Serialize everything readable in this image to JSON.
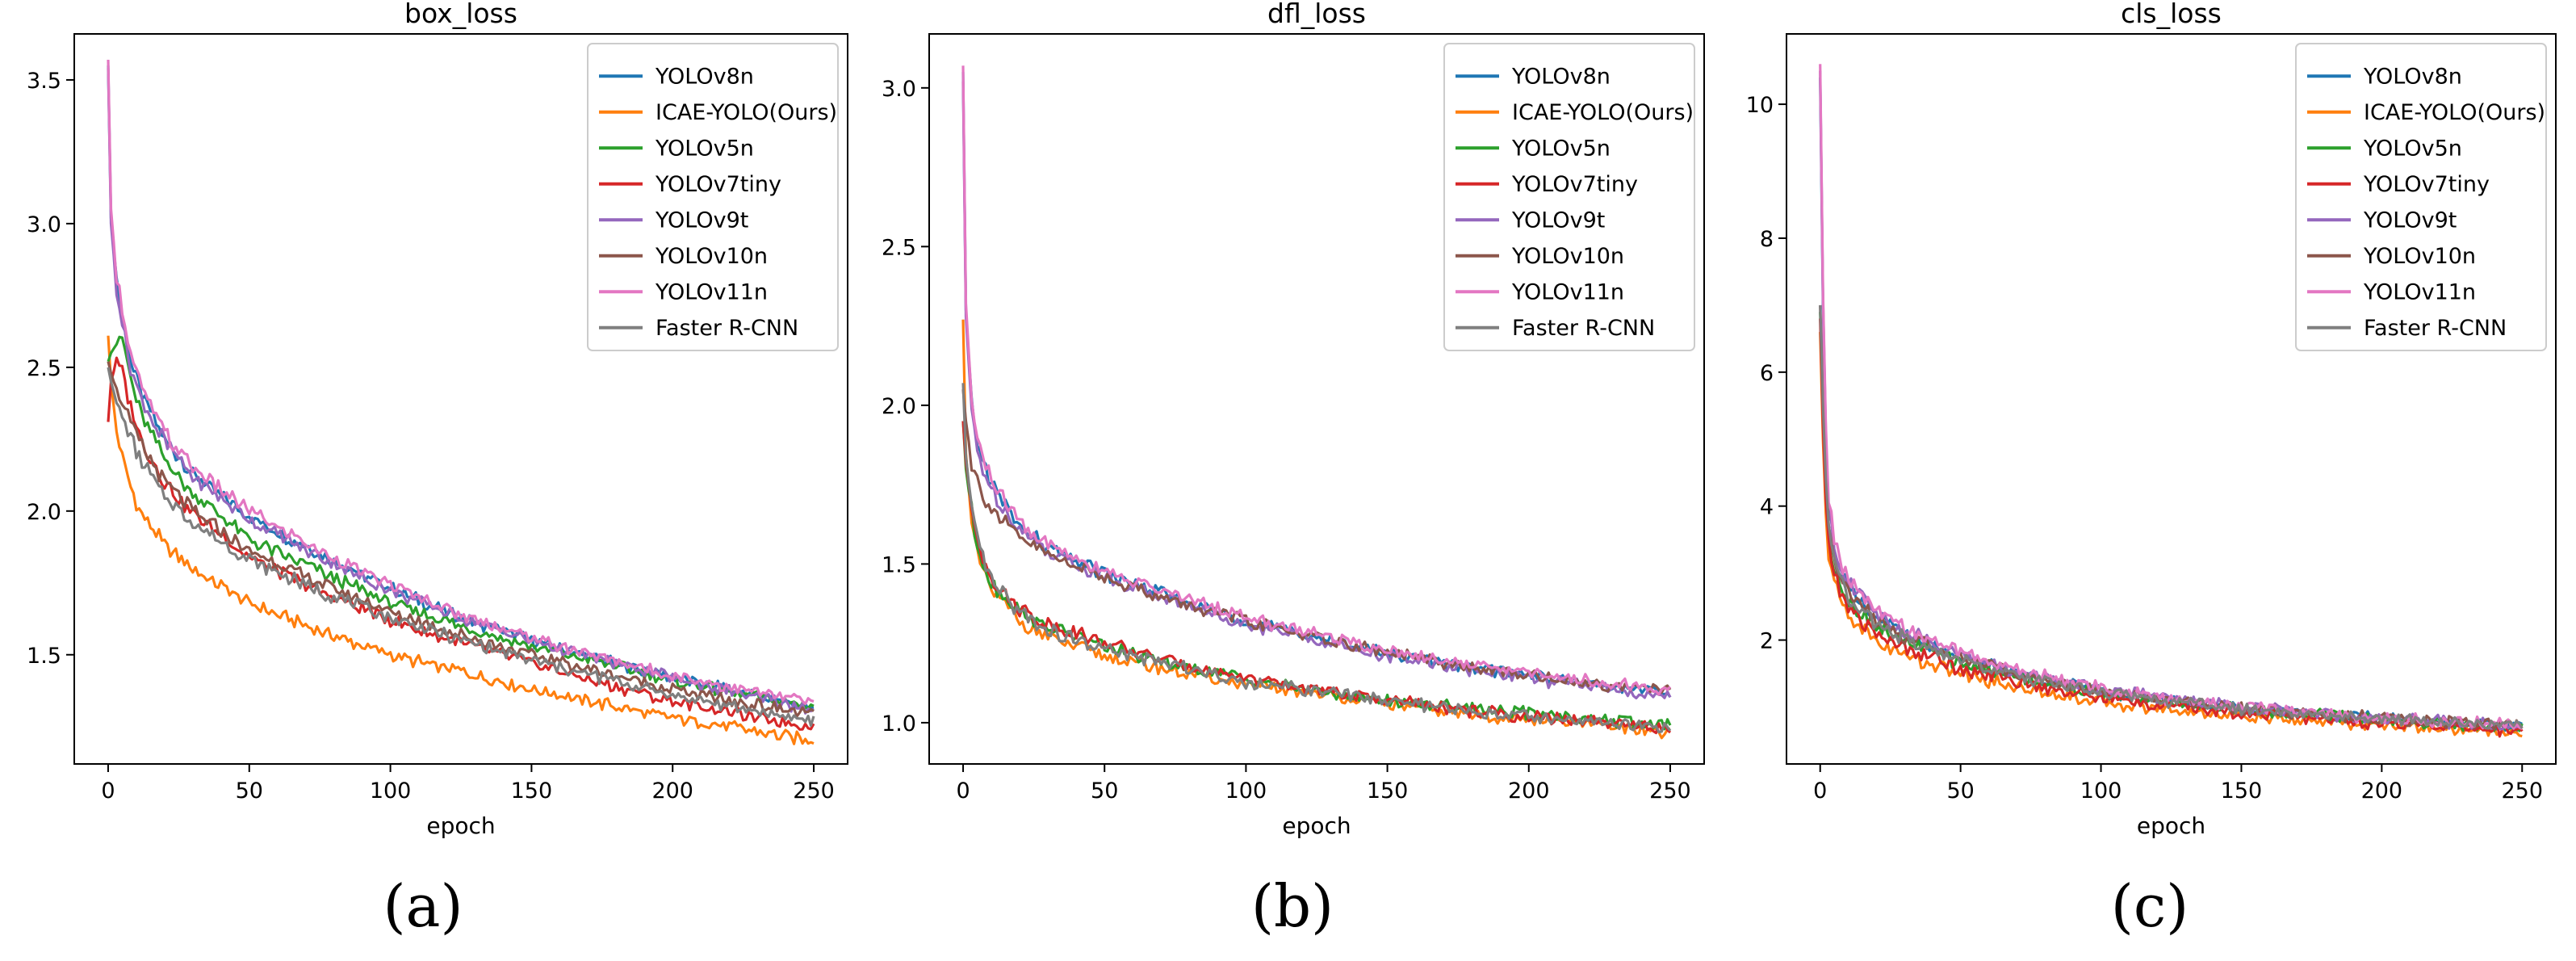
{
  "colors": {
    "YOLOv8n": "#1f77b4",
    "ICAE-YOLO(Ours)": "#ff7f0e",
    "YOLOv5n": "#2ca02c",
    "YOLOv7tiny": "#d62728",
    "YOLOv9t": "#9467bd",
    "YOLOv10n": "#8c564b",
    "YOLOv11n": "#e377c2",
    "Faster R-CNN": "#7f7f7f"
  },
  "chart_data": [
    {
      "type": "line",
      "panel_label": "(a)",
      "title": "box_loss",
      "xlabel": "epoch",
      "ylabel": "",
      "xlim": [
        -12,
        262
      ],
      "ylim": [
        1.12,
        3.66
      ],
      "xticks": [
        0,
        50,
        100,
        150,
        200,
        250
      ],
      "yticks": [
        1.5,
        2.0,
        2.5,
        3.0,
        3.5
      ],
      "ytick_labels": [
        "1.5",
        "2.0",
        "2.5",
        "3.0",
        "3.5"
      ],
      "legend_position": "top-right",
      "series": [
        {
          "name": "YOLOv8n",
          "x": [
            0,
            1,
            3,
            5,
            8,
            12,
            20,
            30,
            50,
            75,
            100,
            125,
            150,
            175,
            200,
            225,
            250
          ],
          "values": [
            3.55,
            3.02,
            2.8,
            2.68,
            2.52,
            2.4,
            2.25,
            2.13,
            1.98,
            1.85,
            1.73,
            1.63,
            1.55,
            1.48,
            1.42,
            1.37,
            1.31
          ]
        },
        {
          "name": "ICAE-YOLO(Ours)",
          "x": [
            0,
            1,
            3,
            5,
            8,
            12,
            20,
            30,
            50,
            75,
            100,
            125,
            150,
            175,
            200,
            225,
            250
          ],
          "values": [
            2.61,
            2.45,
            2.28,
            2.18,
            2.08,
            1.98,
            1.88,
            1.8,
            1.68,
            1.58,
            1.5,
            1.44,
            1.38,
            1.33,
            1.28,
            1.24,
            1.2
          ]
        },
        {
          "name": "YOLOv5n",
          "x": [
            0,
            1,
            3,
            5,
            8,
            12,
            20,
            30,
            50,
            75,
            100,
            125,
            150,
            175,
            200,
            225,
            250
          ],
          "values": [
            2.52,
            2.55,
            2.58,
            2.6,
            2.46,
            2.33,
            2.18,
            2.06,
            1.9,
            1.79,
            1.68,
            1.6,
            1.53,
            1.47,
            1.41,
            1.36,
            1.32
          ]
        },
        {
          "name": "YOLOv7tiny",
          "x": [
            0,
            1,
            3,
            5,
            8,
            12,
            20,
            30,
            50,
            75,
            100,
            125,
            150,
            175,
            200,
            225,
            250
          ],
          "values": [
            2.31,
            2.45,
            2.52,
            2.48,
            2.36,
            2.24,
            2.1,
            1.99,
            1.84,
            1.72,
            1.62,
            1.54,
            1.47,
            1.4,
            1.34,
            1.29,
            1.25
          ]
        },
        {
          "name": "YOLOv9t",
          "x": [
            0,
            1,
            3,
            5,
            8,
            12,
            20,
            30,
            50,
            75,
            100,
            125,
            150,
            175,
            200,
            225,
            250
          ],
          "values": [
            3.54,
            3.0,
            2.78,
            2.66,
            2.5,
            2.38,
            2.24,
            2.12,
            1.97,
            1.84,
            1.72,
            1.63,
            1.55,
            1.48,
            1.42,
            1.36,
            1.31
          ]
        },
        {
          "name": "YOLOv10n",
          "x": [
            0,
            1,
            3,
            5,
            8,
            12,
            20,
            30,
            50,
            75,
            100,
            125,
            150,
            175,
            200,
            225,
            250
          ],
          "values": [
            2.52,
            2.48,
            2.42,
            2.38,
            2.3,
            2.22,
            2.1,
            2.0,
            1.86,
            1.75,
            1.65,
            1.57,
            1.5,
            1.44,
            1.38,
            1.33,
            1.29
          ]
        },
        {
          "name": "YOLOv11n",
          "x": [
            0,
            1,
            3,
            5,
            8,
            12,
            20,
            30,
            50,
            75,
            100,
            125,
            150,
            175,
            200,
            225,
            250
          ],
          "values": [
            3.57,
            3.05,
            2.82,
            2.7,
            2.55,
            2.42,
            2.27,
            2.15,
            2.0,
            1.86,
            1.74,
            1.64,
            1.56,
            1.49,
            1.43,
            1.38,
            1.33
          ]
        },
        {
          "name": "Faster R-CNN",
          "x": [
            0,
            1,
            3,
            5,
            8,
            12,
            20,
            30,
            50,
            75,
            100,
            125,
            150,
            175,
            200,
            225,
            250
          ],
          "values": [
            2.5,
            2.45,
            2.38,
            2.33,
            2.25,
            2.17,
            2.05,
            1.96,
            1.83,
            1.72,
            1.63,
            1.55,
            1.48,
            1.42,
            1.36,
            1.31,
            1.27
          ]
        }
      ]
    },
    {
      "type": "line",
      "panel_label": "(b)",
      "title": "dfl_loss",
      "xlabel": "epoch",
      "ylabel": "",
      "xlim": [
        -12,
        262
      ],
      "ylim": [
        0.87,
        3.17
      ],
      "xticks": [
        0,
        50,
        100,
        150,
        200,
        250
      ],
      "yticks": [
        1.0,
        1.5,
        2.0,
        2.5,
        3.0
      ],
      "ytick_labels": [
        "1.0",
        "1.5",
        "2.0",
        "2.5",
        "3.0"
      ],
      "legend_position": "top-right",
      "series": [
        {
          "name": "YOLOv8n",
          "x": [
            0,
            1,
            3,
            5,
            8,
            12,
            20,
            30,
            50,
            75,
            100,
            125,
            150,
            175,
            200,
            225,
            250
          ],
          "values": [
            3.05,
            2.3,
            2.0,
            1.88,
            1.8,
            1.72,
            1.62,
            1.55,
            1.47,
            1.39,
            1.32,
            1.27,
            1.22,
            1.18,
            1.15,
            1.12,
            1.09
          ]
        },
        {
          "name": "ICAE-YOLO(Ours)",
          "x": [
            0,
            1,
            3,
            5,
            8,
            12,
            20,
            30,
            50,
            75,
            100,
            125,
            150,
            175,
            200,
            225,
            250
          ],
          "values": [
            2.27,
            1.85,
            1.62,
            1.52,
            1.45,
            1.39,
            1.32,
            1.27,
            1.21,
            1.16,
            1.12,
            1.09,
            1.06,
            1.03,
            1.01,
            0.99,
            0.97
          ]
        },
        {
          "name": "YOLOv5n",
          "x": [
            0,
            1,
            3,
            5,
            8,
            12,
            20,
            30,
            50,
            75,
            100,
            125,
            150,
            175,
            200,
            225,
            250
          ],
          "values": [
            1.95,
            1.8,
            1.66,
            1.56,
            1.48,
            1.42,
            1.35,
            1.3,
            1.24,
            1.18,
            1.14,
            1.1,
            1.07,
            1.05,
            1.03,
            1.01,
            0.99
          ]
        },
        {
          "name": "YOLOv7tiny",
          "x": [
            0,
            1,
            3,
            5,
            8,
            12,
            20,
            30,
            50,
            75,
            100,
            125,
            150,
            175,
            200,
            225,
            250
          ],
          "values": [
            1.95,
            1.82,
            1.68,
            1.58,
            1.5,
            1.43,
            1.36,
            1.31,
            1.25,
            1.19,
            1.14,
            1.1,
            1.07,
            1.04,
            1.02,
            1.0,
            0.98
          ]
        },
        {
          "name": "YOLOv9t",
          "x": [
            0,
            1,
            3,
            5,
            8,
            12,
            20,
            30,
            50,
            75,
            100,
            125,
            150,
            175,
            200,
            225,
            250
          ],
          "values": [
            3.02,
            2.28,
            1.98,
            1.86,
            1.78,
            1.7,
            1.61,
            1.54,
            1.46,
            1.38,
            1.31,
            1.26,
            1.21,
            1.17,
            1.14,
            1.11,
            1.08
          ]
        },
        {
          "name": "YOLOv10n",
          "x": [
            0,
            1,
            3,
            5,
            8,
            12,
            20,
            30,
            50,
            75,
            100,
            125,
            150,
            175,
            200,
            225,
            250
          ],
          "values": [
            2.05,
            1.95,
            1.82,
            1.76,
            1.7,
            1.65,
            1.58,
            1.53,
            1.46,
            1.38,
            1.32,
            1.27,
            1.22,
            1.18,
            1.15,
            1.12,
            1.1
          ]
        },
        {
          "name": "YOLOv11n",
          "x": [
            0,
            1,
            3,
            5,
            8,
            12,
            20,
            30,
            50,
            75,
            100,
            125,
            150,
            175,
            200,
            225,
            250
          ],
          "values": [
            3.07,
            2.32,
            2.01,
            1.89,
            1.81,
            1.73,
            1.63,
            1.56,
            1.48,
            1.4,
            1.33,
            1.28,
            1.23,
            1.19,
            1.16,
            1.13,
            1.1
          ]
        },
        {
          "name": "Faster R-CNN",
          "x": [
            0,
            1,
            3,
            5,
            8,
            12,
            20,
            30,
            50,
            75,
            100,
            125,
            150,
            175,
            200,
            225,
            250
          ],
          "values": [
            2.07,
            1.84,
            1.67,
            1.57,
            1.49,
            1.42,
            1.35,
            1.29,
            1.23,
            1.18,
            1.13,
            1.1,
            1.07,
            1.04,
            1.02,
            1.0,
            0.98
          ]
        }
      ]
    },
    {
      "type": "line",
      "panel_label": "(c)",
      "title": "cls_loss",
      "xlabel": "epoch",
      "ylabel": "",
      "xlim": [
        -12,
        262
      ],
      "ylim": [
        0.15,
        11.05
      ],
      "xticks": [
        0,
        50,
        100,
        150,
        200,
        250
      ],
      "yticks": [
        2,
        4,
        6,
        8,
        10
      ],
      "ytick_labels": [
        "2",
        "4",
        "6",
        "8",
        "10"
      ],
      "legend_position": "top-right",
      "series": [
        {
          "name": "YOLOv8n",
          "x": [
            0,
            1,
            2,
            3,
            5,
            8,
            12,
            20,
            30,
            50,
            75,
            100,
            125,
            150,
            175,
            200,
            225,
            250
          ],
          "values": [
            10.4,
            7.0,
            5.0,
            4.0,
            3.4,
            3.0,
            2.7,
            2.35,
            2.1,
            1.75,
            1.45,
            1.25,
            1.1,
            0.98,
            0.9,
            0.82,
            0.76,
            0.7
          ]
        },
        {
          "name": "ICAE-YOLO(Ours)",
          "x": [
            0,
            1,
            2,
            3,
            5,
            8,
            12,
            20,
            30,
            50,
            75,
            100,
            125,
            150,
            175,
            200,
            225,
            250
          ],
          "values": [
            6.6,
            5.0,
            3.9,
            3.3,
            2.85,
            2.5,
            2.25,
            1.98,
            1.78,
            1.5,
            1.25,
            1.08,
            0.96,
            0.86,
            0.79,
            0.73,
            0.67,
            0.62
          ]
        },
        {
          "name": "YOLOv5n",
          "x": [
            0,
            1,
            2,
            3,
            5,
            8,
            12,
            20,
            30,
            50,
            75,
            100,
            125,
            150,
            175,
            200,
            225,
            250
          ],
          "values": [
            6.9,
            5.4,
            4.3,
            3.6,
            3.1,
            2.75,
            2.5,
            2.2,
            1.98,
            1.66,
            1.4,
            1.2,
            1.07,
            0.96,
            0.88,
            0.8,
            0.74,
            0.69
          ]
        },
        {
          "name": "YOLOv7tiny",
          "x": [
            0,
            1,
            2,
            3,
            5,
            8,
            12,
            20,
            30,
            50,
            75,
            100,
            125,
            150,
            175,
            200,
            225,
            250
          ],
          "values": [
            6.8,
            5.2,
            4.1,
            3.45,
            2.98,
            2.63,
            2.38,
            2.1,
            1.88,
            1.58,
            1.33,
            1.14,
            1.01,
            0.91,
            0.83,
            0.76,
            0.7,
            0.65
          ]
        },
        {
          "name": "YOLOv9t",
          "x": [
            0,
            1,
            2,
            3,
            5,
            8,
            12,
            20,
            30,
            50,
            75,
            100,
            125,
            150,
            175,
            200,
            225,
            250
          ],
          "values": [
            10.5,
            7.1,
            5.1,
            4.05,
            3.45,
            3.05,
            2.75,
            2.38,
            2.13,
            1.78,
            1.47,
            1.27,
            1.12,
            1.0,
            0.91,
            0.83,
            0.77,
            0.71
          ]
        },
        {
          "name": "YOLOv10n",
          "x": [
            0,
            1,
            2,
            3,
            5,
            8,
            12,
            20,
            30,
            50,
            75,
            100,
            125,
            150,
            175,
            200,
            225,
            250
          ],
          "values": [
            7.0,
            5.6,
            4.5,
            3.8,
            3.25,
            2.88,
            2.6,
            2.3,
            2.05,
            1.72,
            1.44,
            1.24,
            1.1,
            0.99,
            0.9,
            0.83,
            0.77,
            0.72
          ]
        },
        {
          "name": "YOLOv11n",
          "x": [
            0,
            1,
            2,
            3,
            5,
            8,
            12,
            20,
            30,
            50,
            75,
            100,
            125,
            150,
            175,
            200,
            225,
            250
          ],
          "values": [
            10.6,
            7.2,
            5.2,
            4.1,
            3.5,
            3.1,
            2.8,
            2.42,
            2.16,
            1.8,
            1.49,
            1.28,
            1.13,
            1.01,
            0.92,
            0.84,
            0.78,
            0.72
          ]
        },
        {
          "name": "Faster R-CNN",
          "x": [
            0,
            1,
            2,
            3,
            5,
            8,
            12,
            20,
            30,
            50,
            75,
            100,
            125,
            150,
            175,
            200,
            225,
            250
          ],
          "values": [
            7.0,
            5.5,
            4.4,
            3.7,
            3.18,
            2.82,
            2.55,
            2.25,
            2.01,
            1.69,
            1.42,
            1.22,
            1.08,
            0.97,
            0.89,
            0.82,
            0.76,
            0.71
          ]
        }
      ]
    }
  ]
}
